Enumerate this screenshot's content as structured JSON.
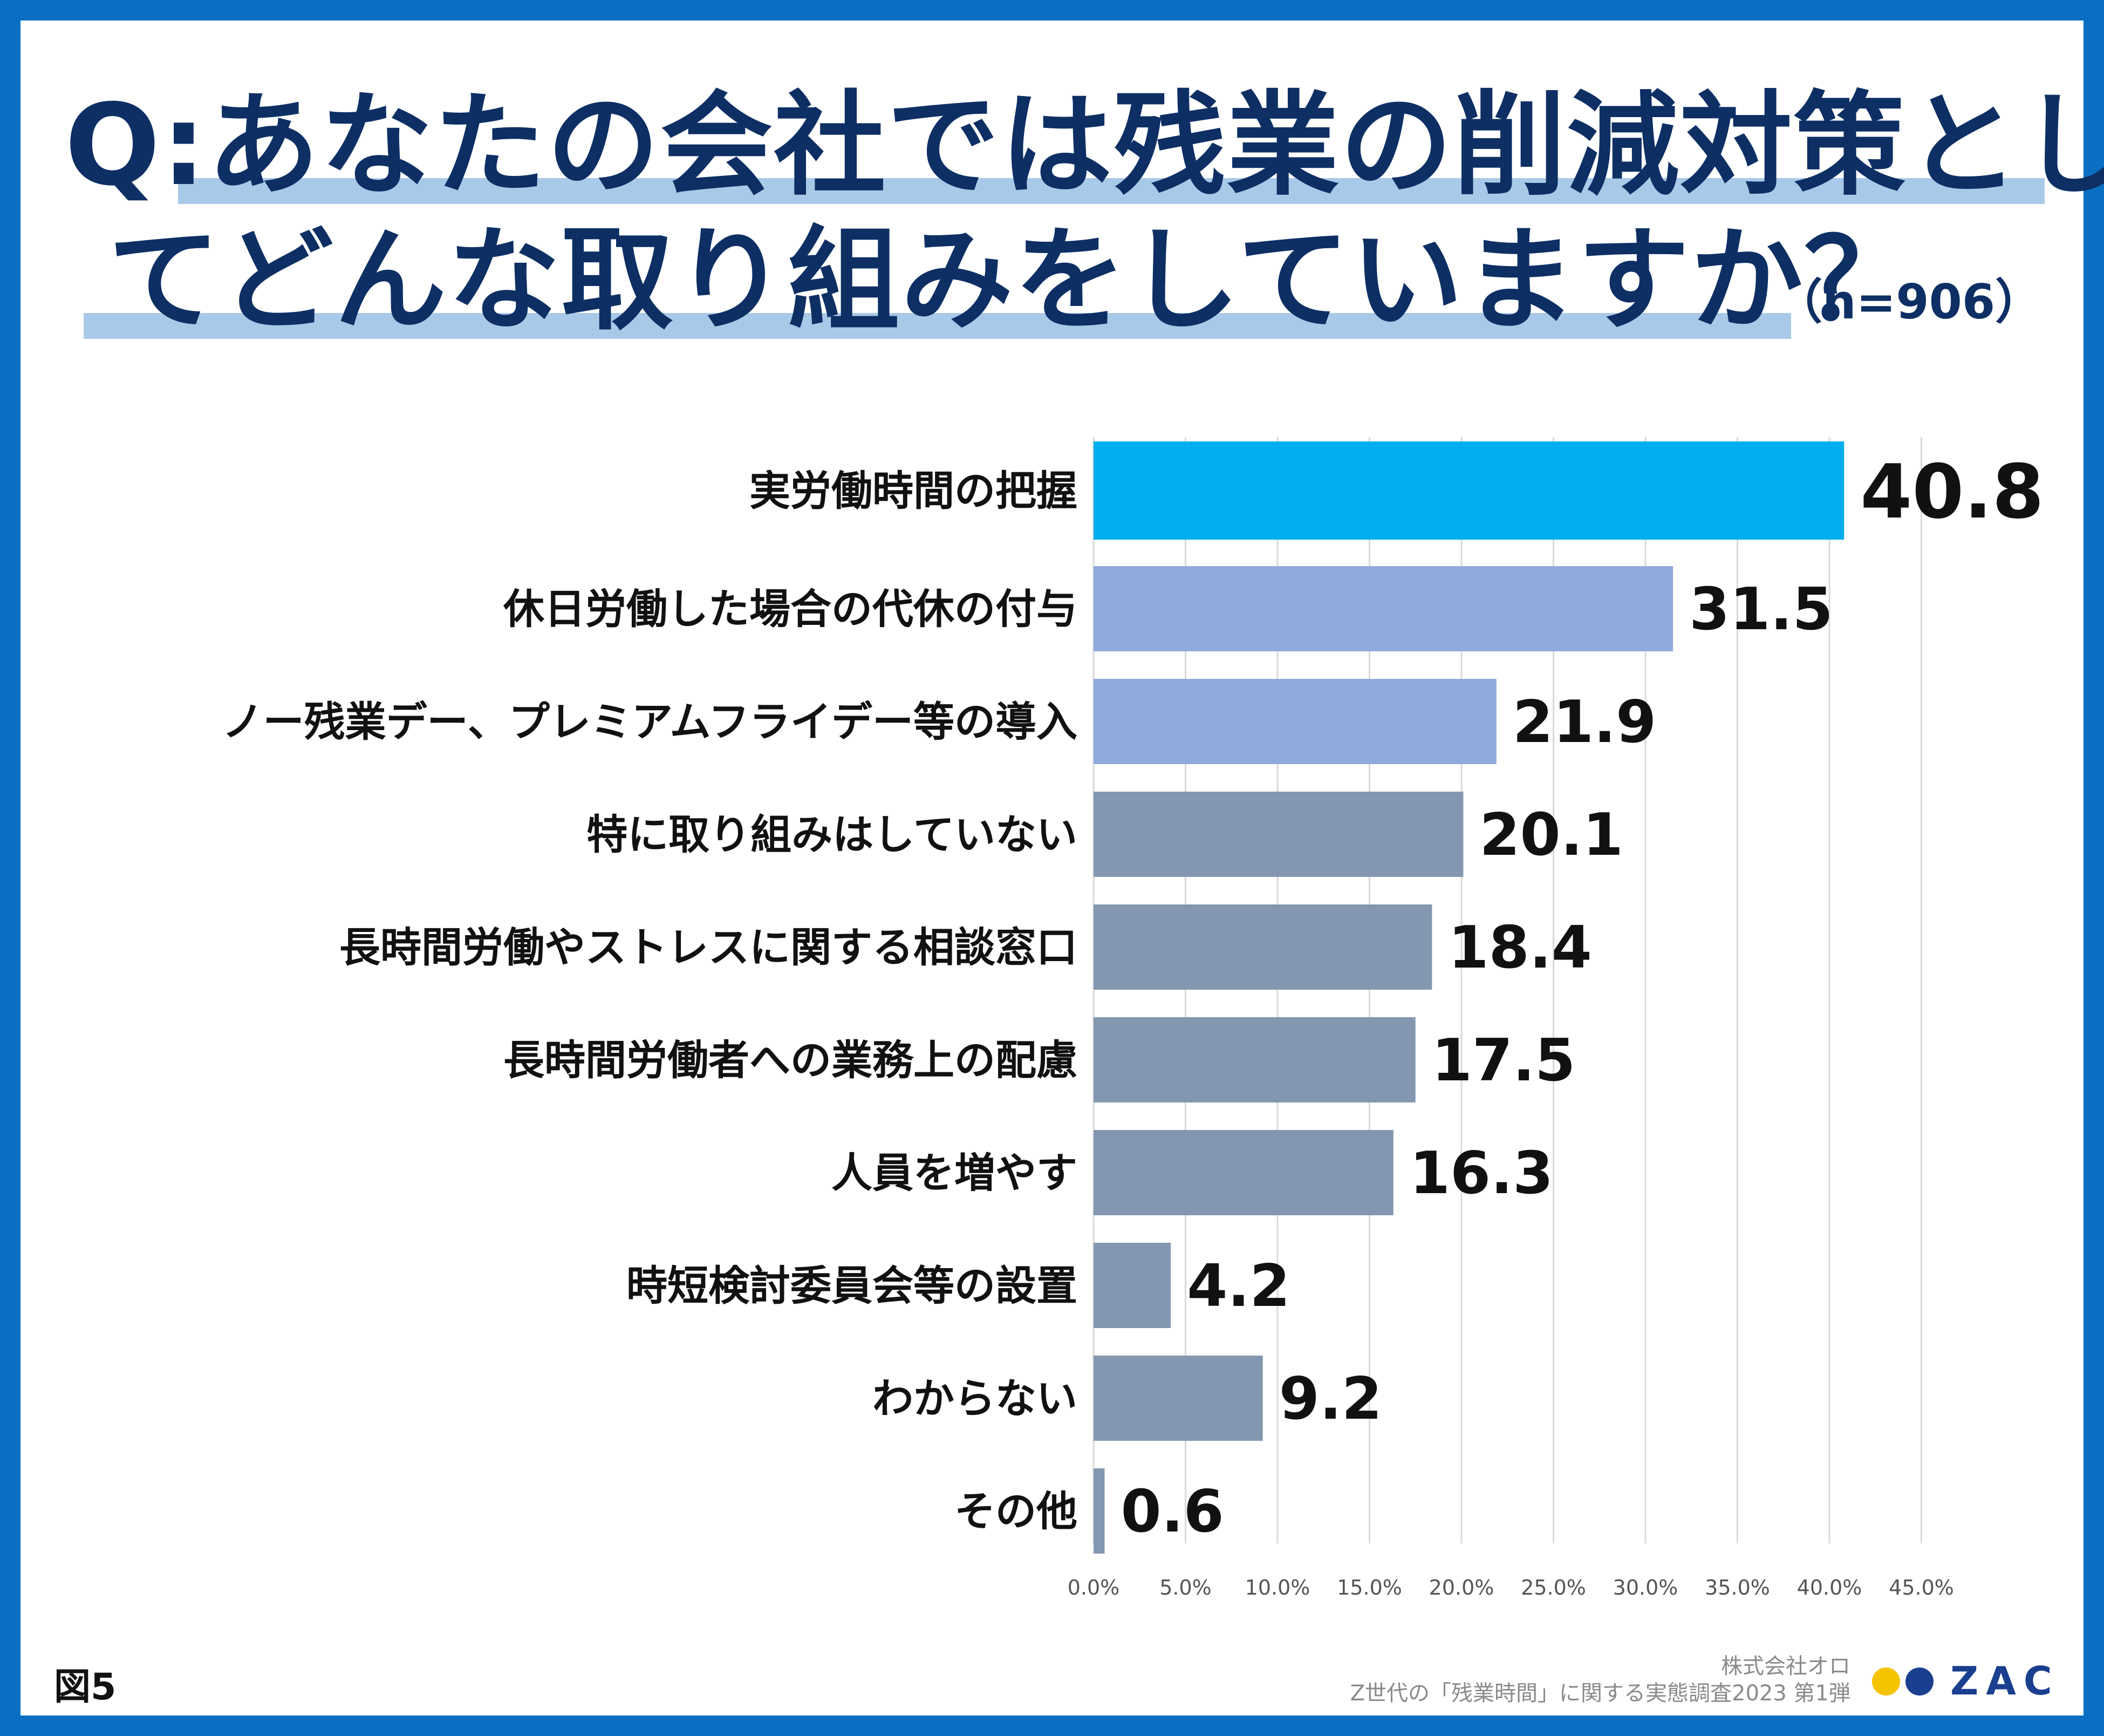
{
  "title": {
    "line1": "Q:あなたの会社では残業の削減対策とし",
    "line2": "てどんな取り組みをしていますか？",
    "sample_size": "（n=906）"
  },
  "colors": {
    "frame": "#0a6fc2",
    "title": "#0d2f64",
    "highlight": "#a9c9e8",
    "bar_top": "#00aeef",
    "bar_mid": "#8faadc",
    "bar_rest": "#8497b0",
    "logo_yellow": "#f5c400",
    "logo_blue": "#1b3f8f"
  },
  "chart_data": {
    "type": "bar",
    "orientation": "horizontal",
    "categories": [
      "実労働時間の把握",
      "休日労働した場合の代休の付与",
      "ノー残業デー、プレミアムフライデー等の導入",
      "特に取り組みはしていない",
      "長時間労働やストレスに関する相談窓口",
      "長時間労働者への業務上の配慮",
      "人員を増やす",
      "時短検討委員会等の設置",
      "わからない",
      "その他"
    ],
    "values": [
      40.8,
      31.5,
      21.9,
      20.1,
      18.4,
      17.5,
      16.3,
      4.2,
      9.2,
      0.6
    ],
    "value_labels": [
      "40.8",
      "31.5",
      "21.9",
      "20.1",
      "18.4",
      "17.5",
      "16.3",
      "4.2",
      "9.2",
      "0.6"
    ],
    "bar_colors": [
      "#00aeef",
      "#8faadc",
      "#8faadc",
      "#8497b0",
      "#8497b0",
      "#8497b0",
      "#8497b0",
      "#8497b0",
      "#8497b0",
      "#8497b0"
    ],
    "xlim": [
      0,
      45
    ],
    "xticks": [
      "0.0%",
      "5.0%",
      "10.0%",
      "15.0%",
      "20.0%",
      "25.0%",
      "30.0%",
      "35.0%",
      "40.0%",
      "45.0%"
    ],
    "grid": true,
    "unit": "%"
  },
  "footer": {
    "figure_label": "図5",
    "company": "株式会社オロ",
    "survey": "Z世代の「残業時間」に関する実態調査2023 第1弾",
    "logo_text": "ZAC"
  }
}
